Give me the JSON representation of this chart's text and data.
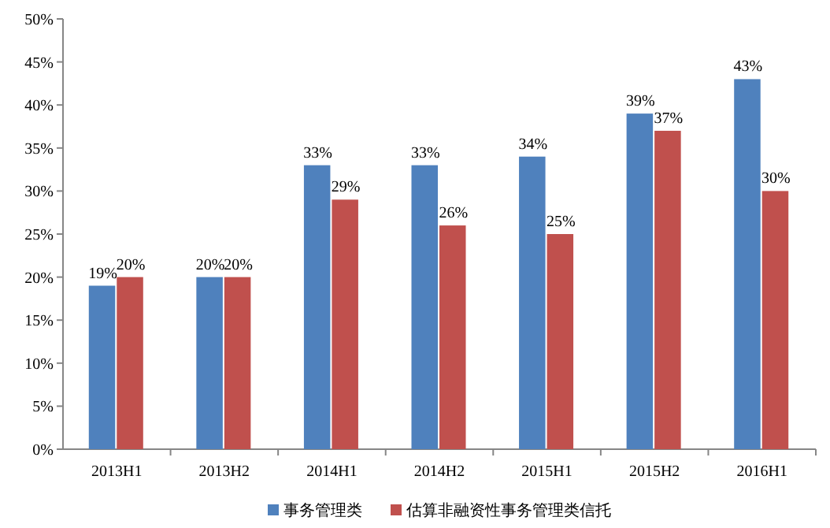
{
  "chart_data": {
    "type": "bar",
    "categories": [
      "2013H1",
      "2013H2",
      "2014H1",
      "2014H2",
      "2015H1",
      "2015H2",
      "2016H1"
    ],
    "series": [
      {
        "name": "事务管理类",
        "color": "#4f81bd",
        "values": [
          19,
          20,
          33,
          33,
          34,
          39,
          43
        ],
        "value_labels": [
          "19%",
          "20%",
          "33%",
          "33%",
          "34%",
          "39%",
          "43%"
        ]
      },
      {
        "name": "估算非融资性事务管理类信托",
        "color": "#c0504d",
        "values": [
          20,
          20,
          29,
          26,
          25,
          37,
          30
        ],
        "value_labels": [
          "20%",
          "20%",
          "29%",
          "26%",
          "25%",
          "37%",
          "30%"
        ]
      }
    ],
    "ylim": [
      0,
      50
    ],
    "yticks": [
      {
        "value": 0,
        "label": "0%"
      },
      {
        "value": 5,
        "label": "5%"
      },
      {
        "value": 10,
        "label": "10%"
      },
      {
        "value": 15,
        "label": "15%"
      },
      {
        "value": 20,
        "label": "20%"
      },
      {
        "value": 25,
        "label": "25%"
      },
      {
        "value": 30,
        "label": "30%"
      },
      {
        "value": 35,
        "label": "35%"
      },
      {
        "value": 40,
        "label": "40%"
      },
      {
        "value": 45,
        "label": "45%"
      },
      {
        "value": 50,
        "label": "50%"
      }
    ],
    "legend": "bottom"
  }
}
